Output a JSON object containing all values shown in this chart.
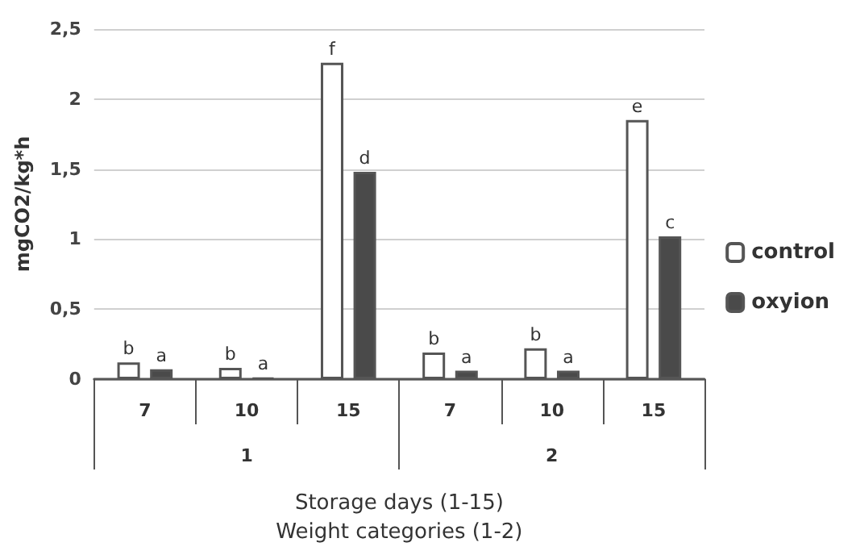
{
  "chart_data": {
    "type": "bar",
    "ylabel": "mgCO2/kg*h",
    "xlabel": "Storage days (1-15)\nWeight categories (1-2)",
    "categories": [
      "7",
      "10",
      "15",
      "7",
      "10",
      "15"
    ],
    "annotations": [
      "1",
      "2"
    ],
    "series": [
      {
        "name": "control",
        "color": "#ffffff",
        "values": [
          0.12,
          0.08,
          2.26,
          0.19,
          0.22,
          1.85
        ],
        "value_labels": [
          "b",
          "b",
          "f",
          "b",
          "b",
          "e"
        ]
      },
      {
        "name": "oxyion",
        "color": "#4a4a4a",
        "values": [
          0.07,
          0.01,
          1.48,
          0.06,
          0.06,
          1.02
        ],
        "value_labels": [
          "a",
          "a",
          "d",
          "a",
          "a",
          "c"
        ]
      }
    ],
    "ylim": [
      0,
      2.5
    ],
    "yticks": [
      {
        "value": 0,
        "label": "0"
      },
      {
        "value": 0.5,
        "label": "0,5"
      },
      {
        "value": 1,
        "label": "1"
      },
      {
        "value": 1.5,
        "label": "1,5"
      },
      {
        "value": 2,
        "label": "2"
      },
      {
        "value": 2.5,
        "label": "2,5"
      }
    ],
    "grid": "y",
    "legend": "right"
  }
}
